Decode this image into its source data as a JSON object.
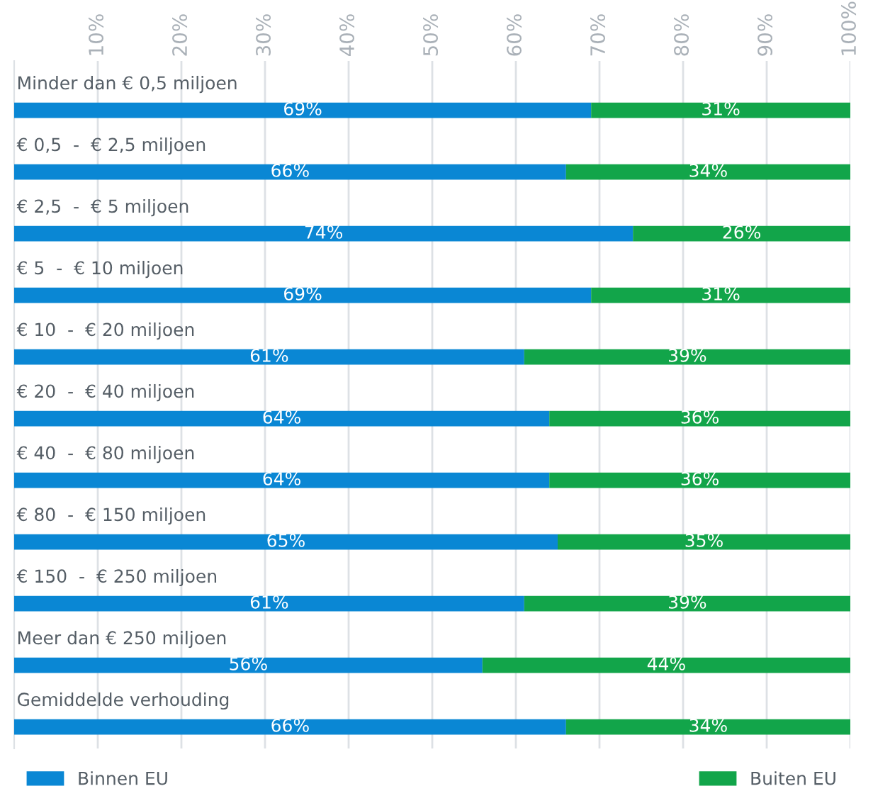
{
  "chart_data": {
    "type": "bar",
    "orientation": "horizontal",
    "stacked": true,
    "categories": [
      "Minder dan € 0,5 miljoen",
      "€ 0,5  -  € 2,5 miljoen",
      "€ 2,5  -  € 5 miljoen",
      "€ 5  -  € 10 miljoen",
      "€ 10  -  € 20 miljoen",
      "€ 20  -  € 40 miljoen",
      "€ 40  -  € 80 miljoen",
      "€ 80  -  € 150 miljoen",
      "€ 150  -  € 250 miljoen",
      "Meer dan € 250 miljoen",
      "Gemiddelde verhouding"
    ],
    "series": [
      {
        "name": "Binnen EU",
        "color": "#0a87d4",
        "values": [
          69,
          66,
          74,
          69,
          61,
          64,
          64,
          65,
          61,
          56,
          66
        ],
        "value_labels": [
          "69%",
          "66%",
          "74%",
          "69%",
          "61%",
          "64%",
          "64%",
          "65%",
          "61%",
          "56%",
          "66%"
        ]
      },
      {
        "name": "Buiten EU",
        "color": "#12a54a",
        "values": [
          31,
          34,
          26,
          31,
          39,
          36,
          36,
          35,
          39,
          44,
          34
        ],
        "value_labels": [
          "31%",
          "34%",
          "26%",
          "31%",
          "39%",
          "36%",
          "36%",
          "35%",
          "39%",
          "44%",
          "34%"
        ]
      }
    ],
    "xlim": [
      0,
      100
    ],
    "xticks": [
      {
        "value": 10,
        "label": "10%"
      },
      {
        "value": 20,
        "label": "20%"
      },
      {
        "value": 30,
        "label": "30%"
      },
      {
        "value": 40,
        "label": "40%"
      },
      {
        "value": 50,
        "label": "50%"
      },
      {
        "value": 60,
        "label": "60%"
      },
      {
        "value": 70,
        "label": "70%"
      },
      {
        "value": 80,
        "label": "80%"
      },
      {
        "value": 90,
        "label": "90%"
      },
      {
        "value": 100,
        "label": "100%"
      }
    ],
    "grid": "x",
    "legend": "bottom"
  }
}
